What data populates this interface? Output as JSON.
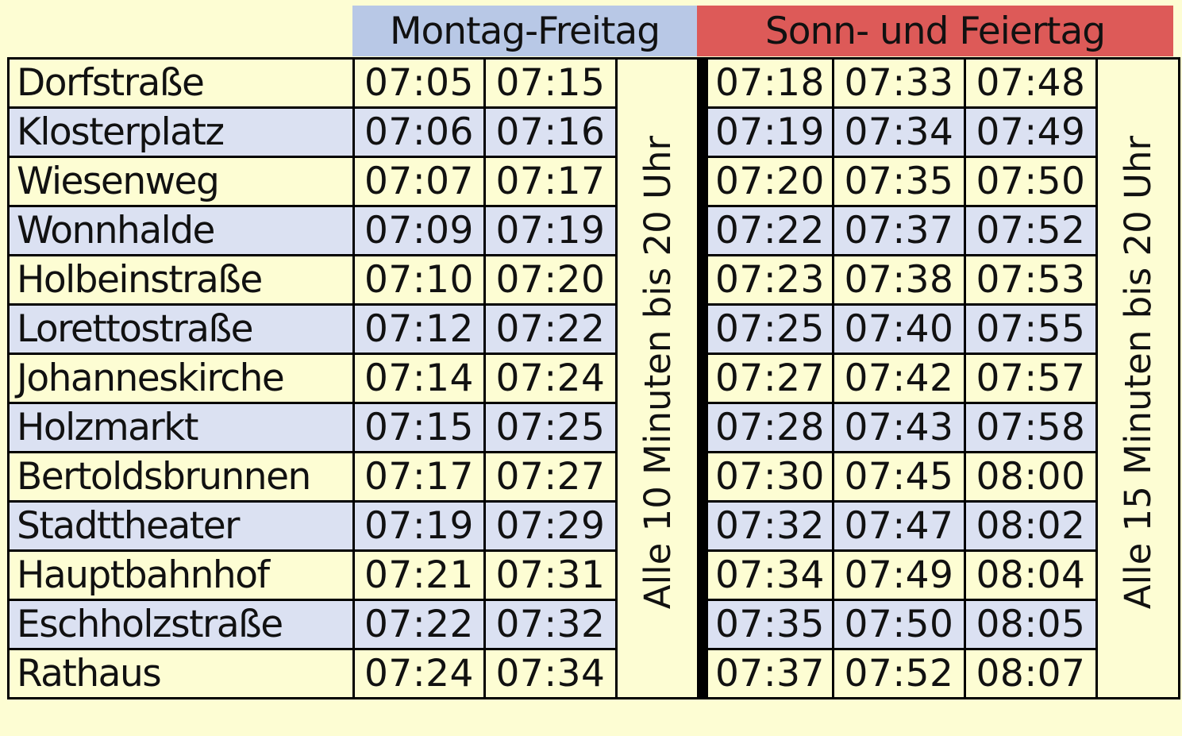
{
  "headers": {
    "weekday": "Montag-Freitag",
    "sunday": "Sonn- und Feiertag"
  },
  "notes": {
    "weekday": "Alle 10 Minuten bis 20 Uhr",
    "sunday": "Alle 15 Minuten bis 20 Uhr"
  },
  "rows": [
    {
      "stop": "Dorfstraße",
      "weekday": [
        "07:05",
        "07:15"
      ],
      "sunday": [
        "07:18",
        "07:33",
        "07:48"
      ]
    },
    {
      "stop": "Klosterplatz",
      "weekday": [
        "07:06",
        "07:16"
      ],
      "sunday": [
        "07:19",
        "07:34",
        "07:49"
      ]
    },
    {
      "stop": "Wiesenweg",
      "weekday": [
        "07:07",
        "07:17"
      ],
      "sunday": [
        "07:20",
        "07:35",
        "07:50"
      ]
    },
    {
      "stop": "Wonnhalde",
      "weekday": [
        "07:09",
        "07:19"
      ],
      "sunday": [
        "07:22",
        "07:37",
        "07:52"
      ]
    },
    {
      "stop": "Holbeinstraße",
      "weekday": [
        "07:10",
        "07:20"
      ],
      "sunday": [
        "07:23",
        "07:38",
        "07:53"
      ]
    },
    {
      "stop": "Lorettostraße",
      "weekday": [
        "07:12",
        "07:22"
      ],
      "sunday": [
        "07:25",
        "07:40",
        "07:55"
      ]
    },
    {
      "stop": "Johanneskirche",
      "weekday": [
        "07:14",
        "07:24"
      ],
      "sunday": [
        "07:27",
        "07:42",
        "07:57"
      ]
    },
    {
      "stop": "Holzmarkt",
      "weekday": [
        "07:15",
        "07:25"
      ],
      "sunday": [
        "07:28",
        "07:43",
        "07:58"
      ]
    },
    {
      "stop": "Bertoldsbrunnen",
      "weekday": [
        "07:17",
        "07:27"
      ],
      "sunday": [
        "07:30",
        "07:45",
        "08:00"
      ]
    },
    {
      "stop": "Stadttheater",
      "weekday": [
        "07:19",
        "07:29"
      ],
      "sunday": [
        "07:32",
        "07:47",
        "08:02"
      ]
    },
    {
      "stop": "Hauptbahnhof",
      "weekday": [
        "07:21",
        "07:31"
      ],
      "sunday": [
        "07:34",
        "07:49",
        "08:04"
      ]
    },
    {
      "stop": "Eschholzstraße",
      "weekday": [
        "07:22",
        "07:32"
      ],
      "sunday": [
        "07:35",
        "07:50",
        "08:05"
      ]
    },
    {
      "stop": "Rathaus",
      "weekday": [
        "07:24",
        "07:34"
      ],
      "sunday": [
        "07:37",
        "07:52",
        "08:07"
      ]
    }
  ]
}
